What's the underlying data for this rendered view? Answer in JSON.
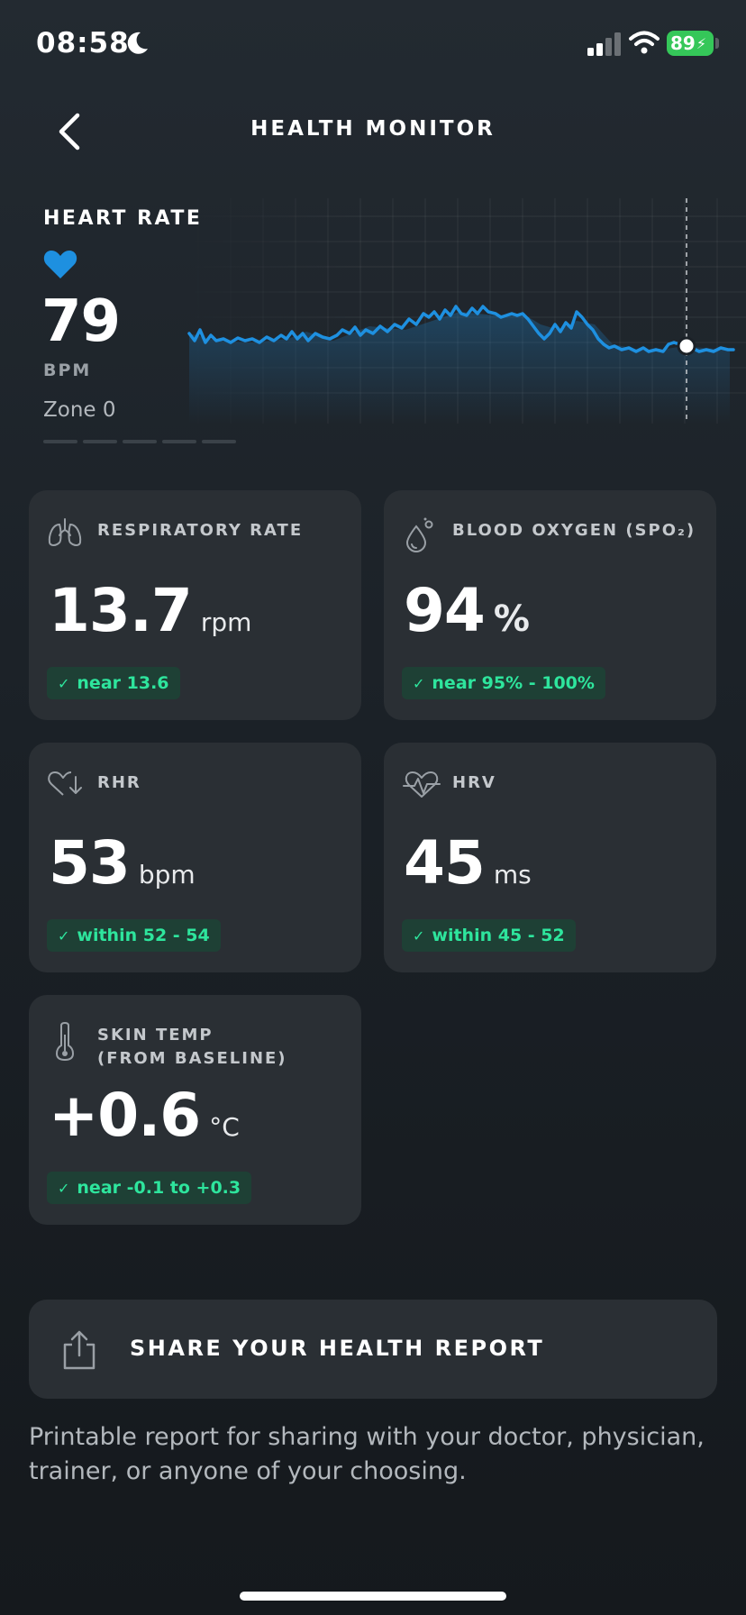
{
  "status_bar": {
    "time": "08:58",
    "battery": "89"
  },
  "nav": {
    "title": "HEALTH MONITOR"
  },
  "heart_rate": {
    "label": "HEART RATE",
    "value": "79",
    "unit": "BPM",
    "zone": "Zone 0",
    "accent": "#1e90e0"
  },
  "cards": [
    {
      "id": "respiratory",
      "icon": "lungs-icon",
      "label": "RESPIRATORY RATE",
      "value": "13.7",
      "unit": "rpm",
      "status": "near 13.6"
    },
    {
      "id": "blood-oxygen",
      "icon": "droplet-icon",
      "label": "BLOOD OXYGEN (SPO₂)",
      "value": "94",
      "unit": "%",
      "status": "near 95% - 100%"
    },
    {
      "id": "rhr",
      "icon": "heart-down-icon",
      "label": "RHR",
      "value": "53",
      "unit": "bpm",
      "status": "within 52 - 54"
    },
    {
      "id": "hrv",
      "icon": "heart-wave-icon",
      "label": "HRV",
      "value": "45",
      "unit": "ms",
      "status": "within 45 - 52"
    },
    {
      "id": "skin-temp",
      "icon": "thermometer-icon",
      "label": "SKIN TEMP",
      "label2": "(FROM BASELINE)",
      "value": "+0.6",
      "unit": "°C",
      "status": "near -0.1 to +0.3"
    }
  ],
  "share": {
    "label": "SHARE YOUR HEALTH REPORT",
    "description": "Printable report for sharing with your doctor, physician, trainer, or anyone of your choosing."
  },
  "colors": {
    "status_green": "#2ee59d",
    "pill_bg": "#1e4035",
    "card_bg": "#2a2f34",
    "battery_green": "#35c759"
  }
}
